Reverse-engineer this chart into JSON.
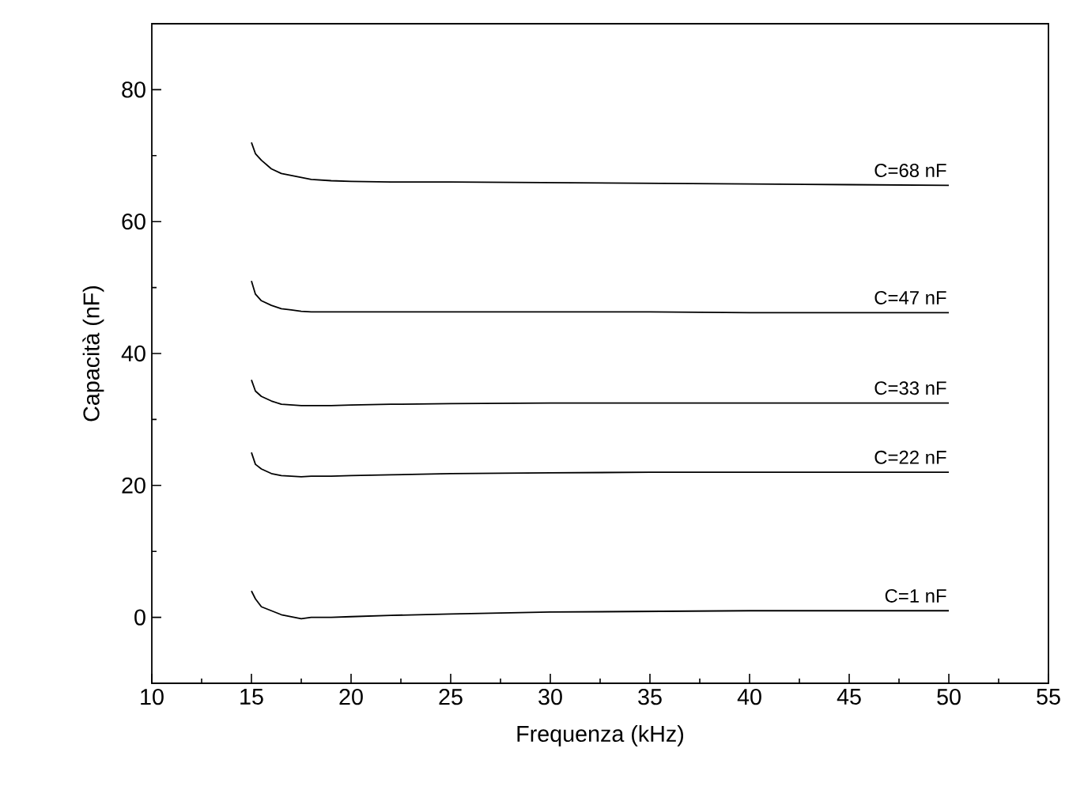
{
  "chart_data": {
    "type": "line",
    "xlabel": "Frequenza  (kHz)",
    "ylabel": "Capacità  (nF)",
    "x": [
      15,
      15.2,
      15.5,
      16,
      16.5,
      17,
      17.5,
      18,
      19,
      20,
      22,
      25,
      30,
      35,
      40,
      45,
      50
    ],
    "series": [
      {
        "name": "C=1 nF",
        "color": "#000000",
        "values": [
          4,
          2.8,
          1.6,
          1,
          0.4,
          0.1,
          -0.2,
          0,
          0,
          0.1,
          0.3,
          0.5,
          0.8,
          0.9,
          1,
          1,
          1
        ]
      },
      {
        "name": "C=22 nF",
        "color": "#000000",
        "values": [
          25,
          23.2,
          22.5,
          21.8,
          21.5,
          21.4,
          21.3,
          21.4,
          21.4,
          21.5,
          21.6,
          21.8,
          21.9,
          22,
          22,
          22,
          22
        ]
      },
      {
        "name": "C=33 nF",
        "color": "#000000",
        "values": [
          36,
          34.3,
          33.5,
          32.8,
          32.3,
          32.2,
          32.1,
          32.1,
          32.1,
          32.2,
          32.3,
          32.4,
          32.5,
          32.5,
          32.5,
          32.5,
          32.5
        ]
      },
      {
        "name": "C=47 nF",
        "color": "#000000",
        "values": [
          51,
          49,
          48,
          47.3,
          46.8,
          46.6,
          46.4,
          46.3,
          46.3,
          46.3,
          46.3,
          46.3,
          46.3,
          46.3,
          46.2,
          46.2,
          46.2
        ]
      },
      {
        "name": "C=68 nF",
        "color": "#000000",
        "values": [
          72,
          70.3,
          69.3,
          68,
          67.3,
          67,
          66.7,
          66.4,
          66.2,
          66.1,
          66,
          66,
          65.9,
          65.8,
          65.7,
          65.6,
          65.5
        ]
      }
    ],
    "xlim": [
      10,
      55
    ],
    "ylim": [
      -10,
      90
    ],
    "xticks": [
      10,
      15,
      20,
      25,
      30,
      35,
      40,
      45,
      50,
      55
    ],
    "yticks": [
      0,
      20,
      40,
      60,
      80
    ],
    "marker": "none",
    "line_style": "solid"
  }
}
